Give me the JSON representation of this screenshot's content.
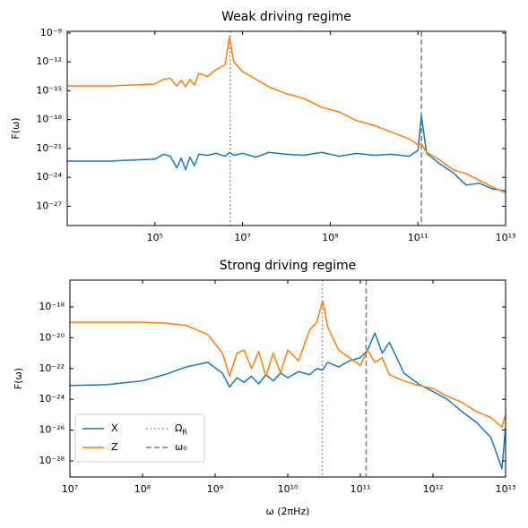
{
  "chart_data": [
    {
      "type": "line",
      "title": "Weak driving regime",
      "ylabel": "F(ω)",
      "xscale": "log",
      "yscale": "log",
      "xlim": [
        1000,
        10000000000000.0
      ],
      "ylim": [
        1e-29,
        1.5e-09
      ],
      "xticks": [
        {
          "value": 100000.0,
          "label": "10⁵"
        },
        {
          "value": 10000000.0,
          "label": "10⁷"
        },
        {
          "value": 1000000000.0,
          "label": "10⁹"
        },
        {
          "value": 100000000000.0,
          "label": "10¹¹"
        },
        {
          "value": 10000000000000.0,
          "label": "10¹³"
        }
      ],
      "yticks": [
        {
          "value": 1e-09,
          "label": "10⁻⁹"
        },
        {
          "value": 1e-12,
          "label": "10⁻¹²"
        },
        {
          "value": 1e-15,
          "label": "10⁻¹⁵"
        },
        {
          "value": 1e-18,
          "label": "10⁻¹⁸"
        },
        {
          "value": 1e-21,
          "label": "10⁻²¹"
        },
        {
          "value": 1e-24,
          "label": "10⁻²⁴"
        },
        {
          "value": 1e-27,
          "label": "10⁻²⁷"
        }
      ],
      "x": [
        1000,
        10000,
        100000,
        158000,
        224000,
        316000,
        398000,
        501000,
        631000,
        794000,
        1000000,
        1580000,
        2510000,
        3980000,
        5010000,
        6310000,
        10000000,
        20000000.0,
        39800000.0,
        100000000.0,
        251000000.0,
        631000000.0,
        1580000000.0,
        3980000000.0,
        10000000000.0,
        25100000000.0,
        63100000000.0,
        100000000000.0,
        120000000000.0,
        158000000000.0,
        316000000000.0,
        631000000000.0,
        1260000000000.0,
        2510000000000.0,
        5010000000000.0,
        10000000000000.0
      ],
      "series": [
        {
          "name": "X",
          "color": "#1f77b4",
          "values": [
            5.01e-23,
            5.01e-23,
            7.94e-23,
            2.51e-22,
            1.58e-22,
            1e-23,
            1e-22,
            6.31e-24,
            1.26e-22,
            1.58e-23,
            2.51e-22,
            2e-22,
            3.16e-22,
            1.58e-22,
            3.98e-22,
            2e-22,
            3.16e-22,
            1.26e-22,
            3.98e-22,
            2.51e-22,
            2e-22,
            3.98e-22,
            1.58e-22,
            3.16e-22,
            2e-22,
            2.51e-22,
            1.58e-22,
            6.31e-22,
            2.51e-18,
            3.16e-22,
            2.51e-23,
            3.16e-24,
            1.58e-25,
            2.51e-25,
            6.31e-26,
            3.98e-26
          ]
        },
        {
          "name": "Z",
          "color": "#ff7f0e",
          "values": [
            3.16e-15,
            3.16e-15,
            5.01e-15,
            1.58e-14,
            2e-14,
            3.16e-15,
            1.26e-14,
            2.51e-15,
            1.58e-14,
            3.98e-15,
            6.31e-14,
            3.16e-14,
            1.58e-13,
            5.01e-13,
            3.98e-10,
            1e-12,
            1e-13,
            1.58e-14,
            2.51e-15,
            5.01e-16,
            1.58e-16,
            2e-17,
            6.31e-18,
            7.94e-19,
            2.51e-19,
            5.01e-20,
            1e-20,
            2.51e-21,
            3.16e-21,
            3.98e-22,
            6.31e-23,
            6.31e-24,
            2.51e-24,
            5.01e-25,
            1e-25,
            2.51e-26
          ]
        }
      ],
      "vlines": [
        {
          "x": 5200000.0,
          "style": "dotted",
          "color": "#7f7f7f"
        },
        {
          "x": 120000000000.0,
          "style": "dashed",
          "color": "#7f7f7f"
        }
      ]
    },
    {
      "type": "line",
      "title": "Strong driving regime",
      "ylabel": "F(ω)",
      "xlabel": "ω (2πHz)",
      "xscale": "log",
      "yscale": "log",
      "xlim": [
        10000000.0,
        10000000000000.0
      ],
      "ylim": [
        9e-30,
        5.5e-17
      ],
      "xticks": [
        {
          "value": 10000000.0,
          "label": "10⁷"
        },
        {
          "value": 100000000.0,
          "label": "10⁸"
        },
        {
          "value": 1000000000.0,
          "label": "10⁹"
        },
        {
          "value": 10000000000.0,
          "label": "10¹⁰"
        },
        {
          "value": 100000000000.0,
          "label": "10¹¹"
        },
        {
          "value": 1000000000000.0,
          "label": "10¹²"
        },
        {
          "value": 10000000000000.0,
          "label": "10¹³"
        }
      ],
      "yticks": [
        {
          "value": 1e-18,
          "label": "10⁻¹⁸"
        },
        {
          "value": 1e-20,
          "label": "10⁻²⁰"
        },
        {
          "value": 1e-22,
          "label": "10⁻²²"
        },
        {
          "value": 1e-24,
          "label": "10⁻²⁴"
        },
        {
          "value": 1e-26,
          "label": "10⁻²⁶"
        },
        {
          "value": 1e-28,
          "label": "10⁻²⁸"
        }
      ],
      "x": [
        10000000.0,
        31600000.0,
        100000000.0,
        200000000.0,
        398000000.0,
        794000000.0,
        1260000000.0,
        1580000000.0,
        2000000000.0,
        2510000000.0,
        3160000000.0,
        3980000000.0,
        5010000000.0,
        6310000000.0,
        7940000000.0,
        10000000000.0,
        14100000000.0,
        20000000000.0,
        25100000000.0,
        30200000000.0,
        35500000000.0,
        50100000000.0,
        70800000000.0,
        100000000000.0,
        126000000000.0,
        158000000000.0,
        200000000000.0,
        251000000000.0,
        398000000000.0,
        631000000000.0,
        1000000000000.0,
        1580000000000.0,
        2510000000000.0,
        3980000000000.0,
        6310000000000.0,
        8910000000000.0,
        10000000000000.0
      ],
      "series": [
        {
          "name": "X",
          "color": "#1f77b4",
          "values": [
            7.94e-24,
            8.91e-24,
            1.58e-23,
            3.98e-23,
            1.26e-22,
            2.51e-22,
            5.01e-23,
            6.31e-24,
            2.51e-23,
            1.26e-23,
            3.16e-23,
            1e-23,
            3.98e-23,
            1.58e-23,
            5.01e-23,
            2.51e-23,
            6.31e-23,
            3.98e-23,
            1e-22,
            7.94e-23,
            2.51e-22,
            1.26e-22,
            3.16e-22,
            5.01e-22,
            1.58e-21,
            2e-20,
            1e-21,
            5.01e-21,
            5.01e-23,
            1e-23,
            3.16e-24,
            1e-24,
            1.58e-25,
            3.16e-26,
            3.16e-27,
            3.16e-29,
            1.58e-26
          ]
        },
        {
          "name": "Z",
          "color": "#ff7f0e",
          "values": [
            1e-19,
            1e-19,
            1e-19,
            8.91e-20,
            6.31e-20,
            1.58e-20,
            1e-21,
            3.16e-23,
            1e-21,
            1.58e-21,
            1e-22,
            1.26e-21,
            3.16e-23,
            1e-21,
            5.01e-23,
            1.58e-21,
            3.16e-22,
            3.16e-20,
            1e-19,
            2.51e-18,
            5.01e-20,
            1.58e-21,
            5.01e-22,
            1.58e-22,
            1.58e-21,
            2.51e-22,
            5.01e-22,
            3.98e-23,
            1.58e-23,
            7.94e-24,
            5.01e-24,
            1.58e-24,
            6.31e-25,
            1.58e-25,
            6.31e-26,
            1.58e-26,
            1e-25
          ]
        }
      ],
      "vlines": [
        {
          "name": "Ω",
          "subscript": "R",
          "x": 30000000000.0,
          "style": "dotted",
          "color": "#7f7f7f"
        },
        {
          "name": "ω₀",
          "x": 120000000000.0,
          "style": "dashed",
          "color": "#7f7f7f"
        }
      ],
      "legend": "lower left"
    }
  ]
}
